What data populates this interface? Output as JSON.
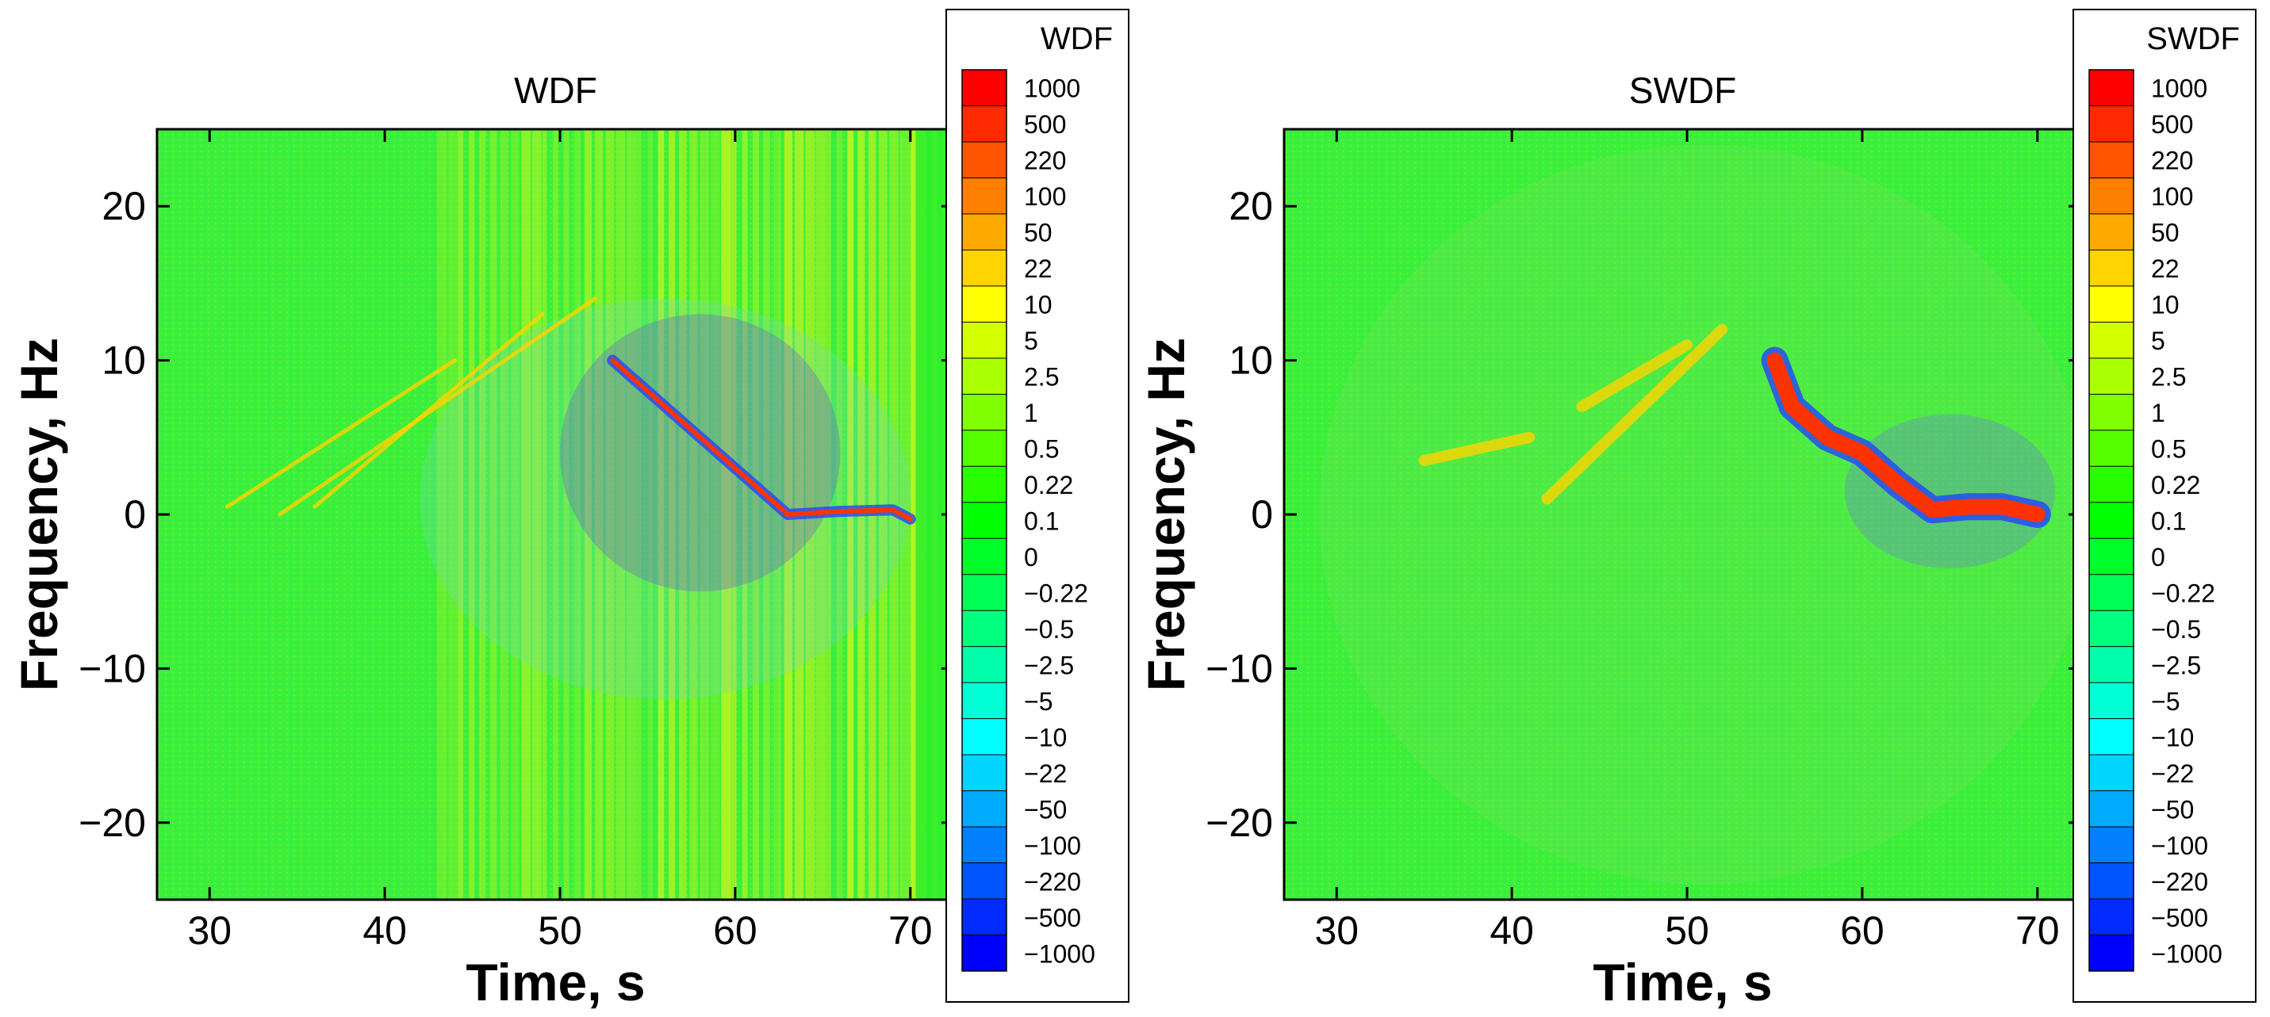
{
  "chart_data": [
    {
      "type": "heatmap",
      "title": "WDF",
      "xlabel": "Time, s",
      "ylabel": "Frequency, Hz",
      "xlim": [
        27,
        72.5
      ],
      "ylim": [
        -25,
        25
      ],
      "xticks": [
        30,
        40,
        50,
        60,
        70
      ],
      "yticks": [
        20,
        10,
        0,
        -10,
        -20
      ],
      "xtick_labels": [
        "30",
        "40",
        "50",
        "60",
        "70"
      ],
      "ytick_labels": [
        "20",
        "10",
        "0",
        "−10",
        "−20"
      ],
      "colorbar": {
        "title": "WDF",
        "levels": [
          "1000",
          "500",
          "220",
          "100",
          "50",
          "22",
          "10",
          "5",
          "2.5",
          "1",
          "0.5",
          "0.22",
          "0.1",
          "0",
          "−0.22",
          "−0.5",
          "−2.5",
          "−5",
          "−10",
          "−22",
          "−50",
          "−100",
          "−220",
          "−500",
          "−1000"
        ]
      },
      "features": {
        "ridge": [
          [
            53,
            10
          ],
          [
            55,
            8
          ],
          [
            58,
            5
          ],
          [
            61,
            2
          ],
          [
            63,
            0
          ],
          [
            66,
            0.2
          ],
          [
            69,
            0.3
          ],
          [
            70,
            -0.3
          ]
        ],
        "streaks": [
          [
            [
              31,
              0.5
            ],
            [
              44,
              10
            ]
          ],
          [
            [
              34,
              0
            ],
            [
              52,
              14
            ]
          ],
          [
            [
              36,
              0.5
            ],
            [
              49,
              13
            ]
          ]
        ],
        "vertical_bands": true
      }
    },
    {
      "type": "heatmap",
      "title": "SWDF",
      "xlabel": "Time, s",
      "ylabel": "Frequency, Hz",
      "xlim": [
        27,
        72.5
      ],
      "ylim": [
        -25,
        25
      ],
      "xticks": [
        30,
        40,
        50,
        60,
        70
      ],
      "yticks": [
        20,
        10,
        0,
        -10,
        -20
      ],
      "xtick_labels": [
        "30",
        "40",
        "50",
        "60",
        "70"
      ],
      "ytick_labels": [
        "20",
        "10",
        "0",
        "−10",
        "−20"
      ],
      "colorbar": {
        "title": "SWDF",
        "levels": [
          "1000",
          "500",
          "220",
          "100",
          "50",
          "22",
          "10",
          "5",
          "2.5",
          "1",
          "0.5",
          "0.22",
          "0.1",
          "0",
          "−0.22",
          "−0.5",
          "−2.5",
          "−5",
          "−10",
          "−22",
          "−50",
          "−100",
          "−220",
          "−500",
          "−1000"
        ]
      },
      "features": {
        "ridge": [
          [
            55,
            10
          ],
          [
            56,
            7
          ],
          [
            58,
            5
          ],
          [
            60,
            4
          ],
          [
            62,
            2
          ],
          [
            64,
            0.3
          ],
          [
            66,
            0.5
          ],
          [
            68,
            0.5
          ],
          [
            70,
            0
          ]
        ],
        "streaks": [
          [
            [
              42,
              1
            ],
            [
              52,
              12
            ]
          ],
          [
            [
              44,
              7
            ],
            [
              50,
              11
            ]
          ],
          [
            [
              35,
              3.5
            ],
            [
              41,
              5
            ]
          ]
        ],
        "vertical_bands": false
      }
    }
  ],
  "colors": {
    "scale": [
      "#ff0000",
      "#ff2a00",
      "#ff5500",
      "#ff7f00",
      "#ffaa00",
      "#ffd400",
      "#ffff00",
      "#d4ff00",
      "#aaff00",
      "#7fff00",
      "#55ff00",
      "#2aff00",
      "#00ff00",
      "#00ff2a",
      "#00ff55",
      "#00ff7f",
      "#00ffaa",
      "#00ffd4",
      "#00ffff",
      "#00d4ff",
      "#00aaff",
      "#007fff",
      "#0055ff",
      "#002aff",
      "#0000ff"
    ],
    "background": "#3af03a",
    "ridge": "#ff3300",
    "ridge_outline": "#2244ff"
  }
}
